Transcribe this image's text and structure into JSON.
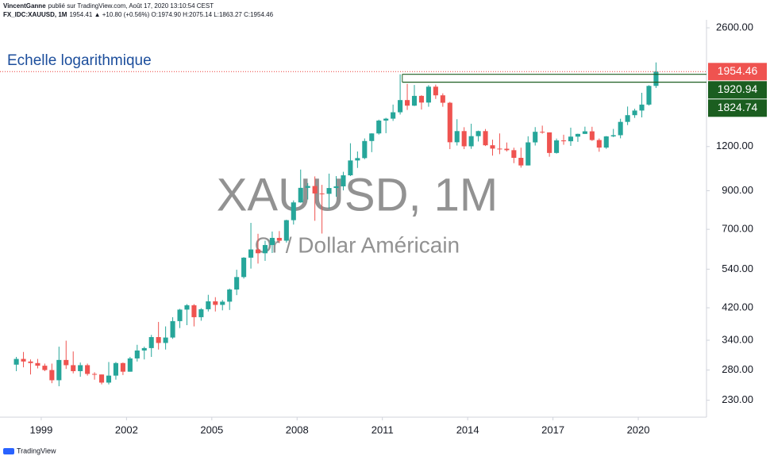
{
  "header": {
    "author": "VincentGanne",
    "published": "publié sur TradingView.com, Août 17, 2020 13:10:54 CEST",
    "symbol": "FX_IDC:XAUUSD, 1M",
    "quote": "1954.41 ▲ +10.80 (+0.56%) O:1974.90 H:2075.14 L:1863.27 C:1954.46"
  },
  "footer": "TradingView",
  "chart_data": {
    "type": "candlestick",
    "title": "Echelle logarithmique",
    "watermark": "XAUUSD, 1M",
    "watermark_subtitle": "Or / Dollar Américain",
    "log_scale": true,
    "grid": false,
    "up_color": "#26a69a",
    "down_color": "#ef5350",
    "xlim": [
      1997.55,
      2022.4
    ],
    "xticks": [
      1999,
      2002,
      2005,
      2008,
      2011,
      2014,
      2017,
      2020
    ],
    "ylim": [
      206,
      3116
    ],
    "yticks": [
      {
        "value": 2600,
        "label": "2600.00"
      },
      {
        "value": 1200,
        "label": "1200.00"
      },
      {
        "value": 900,
        "label": "900.00"
      },
      {
        "value": 700,
        "label": "700.00"
      },
      {
        "value": 540,
        "label": "540.00"
      },
      {
        "value": 420,
        "label": "420.00"
      },
      {
        "value": 340,
        "label": "340.00"
      },
      {
        "value": 280,
        "label": "280.00"
      },
      {
        "value": 230,
        "label": "230.00"
      }
    ],
    "levels": [
      {
        "value": 1954.46,
        "color": "#ef5350",
        "style": "dotted"
      },
      {
        "value": 1920.94,
        "color": "#1b5e20",
        "style": "solid",
        "start": 2011.7
      },
      {
        "value": 1824.74,
        "color": "#1b5e20",
        "style": "solid",
        "start": 2011.7
      }
    ],
    "x": [
      1998,
      1998.25,
      1998.5,
      1998.75,
      1999,
      1999.25,
      1999.5,
      1999.75,
      2000,
      2000.25,
      2000.5,
      2000.75,
      2001,
      2001.25,
      2001.5,
      2001.75,
      2002,
      2002.25,
      2002.5,
      2002.75,
      2003,
      2003.25,
      2003.5,
      2003.75,
      2004,
      2004.25,
      2004.5,
      2004.75,
      2005,
      2005.25,
      2005.5,
      2005.75,
      2006,
      2006.25,
      2006.5,
      2006.75,
      2007,
      2007.25,
      2007.5,
      2007.75,
      2008,
      2008.25,
      2008.5,
      2008.75,
      2009,
      2009.25,
      2009.5,
      2009.75,
      2010,
      2010.25,
      2010.5,
      2010.75,
      2011,
      2011.25,
      2011.5,
      2011.75,
      2012,
      2012.25,
      2012.5,
      2012.75,
      2013,
      2013.25,
      2013.5,
      2013.75,
      2014,
      2014.25,
      2014.5,
      2014.75,
      2015,
      2015.25,
      2015.5,
      2015.75,
      2016,
      2016.25,
      2016.5,
      2016.75,
      2017,
      2017.25,
      2017.5,
      2017.75,
      2018,
      2018.25,
      2018.5,
      2018.75,
      2019,
      2019.25,
      2019.5,
      2019.75,
      2020,
      2020.25,
      2020.5
    ],
    "open": [
      290,
      301,
      296,
      293,
      288,
      280,
      262,
      299,
      289,
      278,
      289,
      273,
      272,
      258,
      270,
      293,
      277,
      302,
      318,
      323,
      347,
      334,
      346,
      385,
      415,
      427,
      395,
      416,
      438,
      428,
      437,
      473,
      513,
      582,
      614,
      599,
      632,
      662,
      650,
      743,
      834,
      917,
      928,
      884,
      882,
      916,
      926,
      995,
      1096,
      1113,
      1244,
      1307,
      1421,
      1439,
      1500,
      1624,
      1566,
      1669,
      1598,
      1772,
      1675,
      1596,
      1234,
      1327,
      1202,
      1284,
      1327,
      1210,
      1184,
      1183,
      1172,
      1115,
      1061,
      1233,
      1321,
      1316,
      1151,
      1249,
      1242,
      1280,
      1303,
      1325,
      1252,
      1192,
      1282,
      1292,
      1409,
      1472,
      1517,
      1577,
      1781
    ],
    "high": [
      305,
      315,
      300,
      301,
      292,
      292,
      326,
      339,
      316,
      294,
      292,
      276,
      272,
      295,
      295,
      294,
      305,
      330,
      326,
      352,
      383,
      372,
      395,
      417,
      430,
      430,
      419,
      457,
      450,
      442,
      476,
      538,
      584,
      730,
      680,
      650,
      690,
      692,
      745,
      845,
      1033,
      946,
      988,
      935,
      1006,
      990,
      1018,
      1226,
      1162,
      1265,
      1308,
      1430,
      1447,
      1577,
      1921,
      1804,
      1792,
      1676,
      1790,
      1796,
      1697,
      1605,
      1434,
      1361,
      1392,
      1331,
      1345,
      1255,
      1307,
      1232,
      1191,
      1191,
      1283,
      1362,
      1375,
      1316,
      1264,
      1296,
      1357,
      1305,
      1366,
      1365,
      1265,
      1285,
      1346,
      1438,
      1557,
      1535,
      1703,
      1789,
      2075
    ],
    "low": [
      278,
      285,
      272,
      283,
      278,
      257,
      252,
      282,
      274,
      268,
      270,
      263,
      255,
      255,
      263,
      271,
      277,
      296,
      300,
      305,
      320,
      320,
      343,
      368,
      375,
      372,
      386,
      410,
      410,
      413,
      414,
      456,
      508,
      542,
      560,
      570,
      600,
      640,
      642,
      722,
      832,
      850,
      740,
      681,
      800,
      865,
      902,
      990,
      1044,
      1105,
      1157,
      1297,
      1309,
      1418,
      1478,
      1523,
      1562,
      1527,
      1555,
      1636,
      1555,
      1180,
      1208,
      1180,
      1182,
      1240,
      1204,
      1131,
      1142,
      1162,
      1077,
      1046,
      1061,
      1208,
      1305,
      1123,
      1146,
      1214,
      1205,
      1237,
      1302,
      1245,
      1160,
      1182,
      1276,
      1266,
      1380,
      1446,
      1451,
      1567,
      1757
    ],
    "close": [
      301,
      296,
      293,
      288,
      280,
      262,
      299,
      289,
      278,
      289,
      273,
      272,
      258,
      270,
      293,
      277,
      302,
      318,
      323,
      347,
      334,
      346,
      385,
      415,
      427,
      395,
      416,
      438,
      428,
      437,
      473,
      513,
      582,
      614,
      599,
      632,
      662,
      650,
      743,
      834,
      917,
      928,
      884,
      882,
      916,
      926,
      995,
      1096,
      1113,
      1244,
      1307,
      1421,
      1439,
      1500,
      1624,
      1566,
      1669,
      1598,
      1772,
      1675,
      1596,
      1234,
      1327,
      1202,
      1284,
      1327,
      1210,
      1184,
      1183,
      1172,
      1115,
      1061,
      1233,
      1321,
      1316,
      1151,
      1249,
      1242,
      1280,
      1303,
      1325,
      1252,
      1192,
      1282,
      1292,
      1409,
      1472,
      1517,
      1577,
      1781,
      1954.46
    ]
  }
}
